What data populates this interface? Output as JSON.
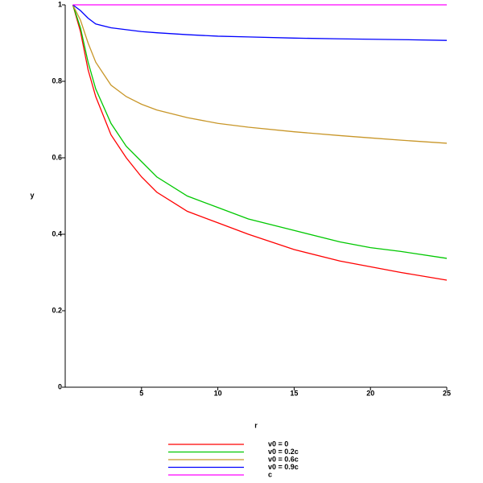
{
  "chart_data": {
    "type": "line",
    "x_label": "r",
    "y_label": "y",
    "x": [
      0.5,
      1,
      1.5,
      2,
      3,
      4,
      5,
      6,
      8,
      10,
      12,
      15,
      18,
      20,
      22,
      25
    ],
    "series": [
      {
        "name": "v0 = 0",
        "color": "#ff0000",
        "values": [
          1,
          0.93,
          0.83,
          0.76,
          0.66,
          0.6,
          0.55,
          0.51,
          0.46,
          0.43,
          0.4,
          0.36,
          0.33,
          0.315,
          0.3,
          0.28
        ]
      },
      {
        "name": "v0 = 0.2c",
        "color": "#00c800",
        "values": [
          1,
          0.94,
          0.85,
          0.78,
          0.69,
          0.63,
          0.59,
          0.55,
          0.5,
          0.47,
          0.44,
          0.41,
          0.38,
          0.365,
          0.355,
          0.337
        ]
      },
      {
        "name": "v0 = 0.6c",
        "color": "#c89628",
        "values": [
          1,
          0.96,
          0.9,
          0.85,
          0.79,
          0.76,
          0.74,
          0.725,
          0.705,
          0.69,
          0.68,
          0.668,
          0.658,
          0.652,
          0.646,
          0.638
        ]
      },
      {
        "name": "v0 = 0.9c",
        "color": "#0000ff",
        "values": [
          1,
          0.985,
          0.965,
          0.95,
          0.94,
          0.935,
          0.93,
          0.927,
          0.922,
          0.918,
          0.916,
          0.913,
          0.911,
          0.91,
          0.909,
          0.907
        ]
      },
      {
        "name": "c",
        "color": "#ff00ff",
        "values": [
          1,
          1,
          1,
          1,
          1,
          1,
          1,
          1,
          1,
          1,
          1,
          1,
          1,
          1,
          1,
          1
        ]
      }
    ],
    "xlim": [
      0,
      25
    ],
    "ylim": [
      0,
      1
    ],
    "xticks": [
      5,
      10,
      15,
      20,
      25
    ],
    "yticks": [
      0,
      0.2,
      0.4,
      0.6,
      0.8,
      1
    ]
  }
}
